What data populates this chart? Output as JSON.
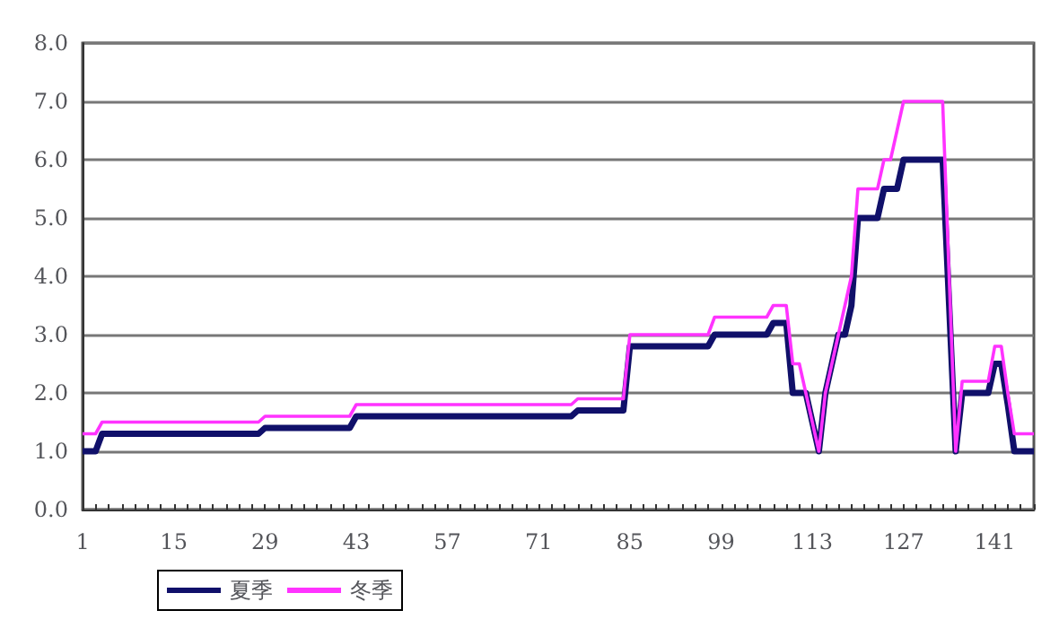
{
  "chart_data": {
    "type": "line",
    "categories": [
      "1",
      null,
      null,
      null,
      null,
      null,
      null,
      null,
      null,
      null,
      null,
      null,
      null,
      null,
      "15",
      null,
      null,
      null,
      null,
      null,
      null,
      null,
      null,
      null,
      null,
      null,
      null,
      null,
      "29",
      null,
      null,
      null,
      null,
      null,
      null,
      null,
      null,
      null,
      null,
      null,
      null,
      null,
      "43",
      null,
      null,
      null,
      null,
      null,
      null,
      null,
      null,
      null,
      null,
      null,
      null,
      null,
      "57",
      null,
      null,
      null,
      null,
      null,
      null,
      null,
      null,
      null,
      null,
      null,
      null,
      null,
      "71",
      null,
      null,
      null,
      null,
      null,
      null,
      null,
      null,
      null,
      null,
      null,
      null,
      null,
      "85",
      null,
      null,
      null,
      null,
      null,
      null,
      null,
      null,
      null,
      null,
      null,
      null,
      null,
      "99",
      null,
      null,
      null,
      null,
      null,
      null,
      null,
      null,
      null,
      null,
      null,
      null,
      null,
      "113",
      null,
      null,
      null,
      null,
      null,
      null,
      null,
      null,
      null,
      null,
      null,
      null,
      null,
      "127",
      null,
      null,
      null,
      null,
      null,
      null,
      null,
      null,
      null,
      null,
      null,
      null,
      null,
      "141",
      null,
      null,
      null,
      null,
      null,
      null
    ],
    "series": [
      {
        "name": "夏季",
        "color": "#10106a",
        "values": [
          1.0,
          1.0,
          1.0,
          1.3,
          1.3,
          1.3,
          1.3,
          1.3,
          1.3,
          1.3,
          1.3,
          1.3,
          1.3,
          1.3,
          1.3,
          1.3,
          1.3,
          1.3,
          1.3,
          1.3,
          1.3,
          1.3,
          1.3,
          1.3,
          1.3,
          1.3,
          1.3,
          1.3,
          1.4,
          1.4,
          1.4,
          1.4,
          1.4,
          1.4,
          1.4,
          1.4,
          1.4,
          1.4,
          1.4,
          1.4,
          1.4,
          1.4,
          1.6,
          1.6,
          1.6,
          1.6,
          1.6,
          1.6,
          1.6,
          1.6,
          1.6,
          1.6,
          1.6,
          1.6,
          1.6,
          1.6,
          1.6,
          1.6,
          1.6,
          1.6,
          1.6,
          1.6,
          1.6,
          1.6,
          1.6,
          1.6,
          1.6,
          1.6,
          1.6,
          1.6,
          1.6,
          1.6,
          1.6,
          1.6,
          1.6,
          1.6,
          1.7,
          1.7,
          1.7,
          1.7,
          1.7,
          1.7,
          1.7,
          1.7,
          2.8,
          2.8,
          2.8,
          2.8,
          2.8,
          2.8,
          2.8,
          2.8,
          2.8,
          2.8,
          2.8,
          2.8,
          2.8,
          3.0,
          3.0,
          3.0,
          3.0,
          3.0,
          3.0,
          3.0,
          3.0,
          3.0,
          3.2,
          3.2,
          3.2,
          2.0,
          2.0,
          2.0,
          1.5,
          1.0,
          2.0,
          2.5,
          3.0,
          3.0,
          3.5,
          5.0,
          5.0,
          5.0,
          5.0,
          5.5,
          5.5,
          5.5,
          6.0,
          6.0,
          6.0,
          6.0,
          6.0,
          6.0,
          6.0,
          3.5,
          1.0,
          2.0,
          2.0,
          2.0,
          2.0,
          2.0,
          2.5,
          2.5,
          1.8,
          1.0,
          1.0,
          1.0,
          1.0
        ]
      },
      {
        "name": "冬季",
        "color": "#ff33ff",
        "values": [
          1.3,
          1.3,
          1.3,
          1.5,
          1.5,
          1.5,
          1.5,
          1.5,
          1.5,
          1.5,
          1.5,
          1.5,
          1.5,
          1.5,
          1.5,
          1.5,
          1.5,
          1.5,
          1.5,
          1.5,
          1.5,
          1.5,
          1.5,
          1.5,
          1.5,
          1.5,
          1.5,
          1.5,
          1.6,
          1.6,
          1.6,
          1.6,
          1.6,
          1.6,
          1.6,
          1.6,
          1.6,
          1.6,
          1.6,
          1.6,
          1.6,
          1.6,
          1.8,
          1.8,
          1.8,
          1.8,
          1.8,
          1.8,
          1.8,
          1.8,
          1.8,
          1.8,
          1.8,
          1.8,
          1.8,
          1.8,
          1.8,
          1.8,
          1.8,
          1.8,
          1.8,
          1.8,
          1.8,
          1.8,
          1.8,
          1.8,
          1.8,
          1.8,
          1.8,
          1.8,
          1.8,
          1.8,
          1.8,
          1.8,
          1.8,
          1.8,
          1.9,
          1.9,
          1.9,
          1.9,
          1.9,
          1.9,
          1.9,
          1.9,
          3.0,
          3.0,
          3.0,
          3.0,
          3.0,
          3.0,
          3.0,
          3.0,
          3.0,
          3.0,
          3.0,
          3.0,
          3.0,
          3.3,
          3.3,
          3.3,
          3.3,
          3.3,
          3.3,
          3.3,
          3.3,
          3.3,
          3.5,
          3.5,
          3.5,
          2.5,
          2.5,
          2.0,
          1.5,
          1.0,
          2.0,
          2.5,
          3.0,
          3.5,
          4.0,
          5.5,
          5.5,
          5.5,
          5.5,
          6.0,
          6.0,
          6.5,
          7.0,
          7.0,
          7.0,
          7.0,
          7.0,
          7.0,
          7.0,
          4.0,
          1.0,
          2.2,
          2.2,
          2.2,
          2.2,
          2.2,
          2.8,
          2.8,
          2.0,
          1.3,
          1.3,
          1.3,
          1.3
        ]
      }
    ],
    "ylim": [
      0,
      8
    ],
    "yticks": [
      {
        "value": 0,
        "label": "0.0"
      },
      {
        "value": 1,
        "label": "1.0"
      },
      {
        "value": 2,
        "label": "2.0"
      },
      {
        "value": 3,
        "label": "3.0"
      },
      {
        "value": 4,
        "label": "4.0"
      },
      {
        "value": 5,
        "label": "5.0"
      },
      {
        "value": 6,
        "label": "6.0"
      },
      {
        "value": 7,
        "label": "7.0"
      },
      {
        "value": 8,
        "label": "8.0"
      }
    ],
    "grid": "y",
    "legend": "bottom left"
  }
}
